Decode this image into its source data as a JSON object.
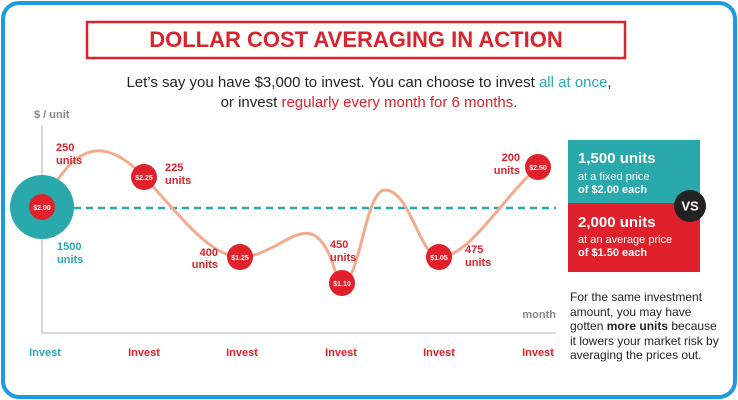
{
  "title": "DOLLAR COST AVERAGING IN ACTION",
  "intro": {
    "line1": [
      "Let’s say you have $3,000 to invest. You can choose to invest ",
      "all at once",
      ","
    ],
    "line2": [
      "or invest ",
      "regularly every month for 6 months",
      "."
    ]
  },
  "axis": {
    "y_label": "$ / unit",
    "x_label": "month"
  },
  "points": [
    {
      "price": "$2.00",
      "units": [
        "1500",
        "units"
      ]
    },
    {
      "price": "$2.25",
      "units": [
        "225",
        "units"
      ]
    },
    {
      "price": "$1.25",
      "units": [
        "400",
        "units"
      ]
    },
    {
      "price": "$1.10",
      "units": [
        "450",
        "units"
      ]
    },
    {
      "price": "$1.05",
      "units": [
        "475",
        "units"
      ]
    },
    {
      "price": "$2.50",
      "units": [
        "200",
        "units"
      ]
    }
  ],
  "first_units": [
    "250",
    "units"
  ],
  "invest_labels": [
    "Invest",
    "Invest",
    "Invest",
    "Invest",
    "Invest",
    "Invest"
  ],
  "comparison": {
    "lump": {
      "units": "1,500 units",
      "line1": "at a fixed price",
      "line2": "of $2.00 each"
    },
    "vs": "VS",
    "average": {
      "units": "2,000 units",
      "line1": "at an average price",
      "line2": "of $1.50 each"
    }
  },
  "note": [
    [
      "For the same investment"
    ],
    [
      "amount, you may have"
    ],
    [
      "gotten ",
      "more units",
      " because"
    ],
    [
      "it lowers your market risk by"
    ],
    [
      "averaging the prices out."
    ]
  ]
}
